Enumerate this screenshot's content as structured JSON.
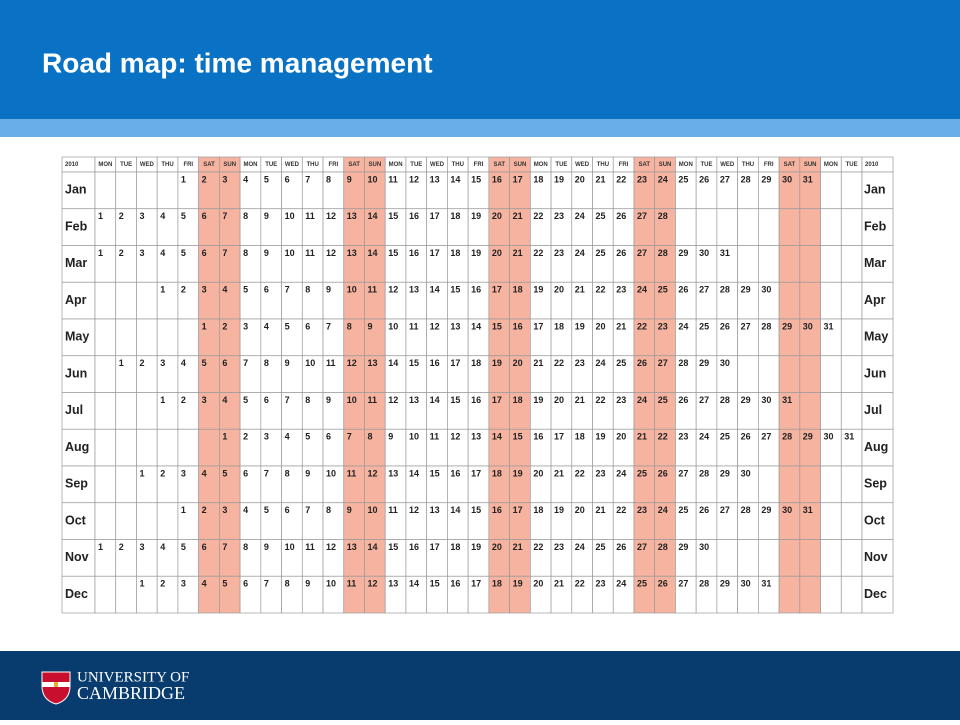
{
  "header": {
    "title": "Road map: time management"
  },
  "table": {
    "year": "2010",
    "columns": [
      "MON",
      "TUE",
      "WED",
      "THU",
      "FRI",
      "SAT",
      "SUN",
      "MON",
      "TUE",
      "WED",
      "THU",
      "FRI",
      "SAT",
      "SUN",
      "MON",
      "TUE",
      "WED",
      "THU",
      "FRI",
      "SAT",
      "SUN",
      "MON",
      "TUE",
      "WED",
      "THU",
      "FRI",
      "SAT",
      "SUN",
      "MON",
      "TUE",
      "WED",
      "THU",
      "FRI",
      "SAT",
      "SUN",
      "MON",
      "TUE"
    ],
    "rows": [
      {
        "month": "Jan",
        "cells": [
          null,
          null,
          null,
          null,
          1,
          2,
          3,
          4,
          5,
          6,
          7,
          8,
          9,
          10,
          11,
          12,
          13,
          14,
          15,
          16,
          17,
          18,
          19,
          20,
          21,
          22,
          23,
          24,
          25,
          26,
          27,
          28,
          29,
          30,
          31,
          null,
          null
        ]
      },
      {
        "month": "Feb",
        "cells": [
          1,
          2,
          3,
          4,
          5,
          6,
          7,
          8,
          9,
          10,
          11,
          12,
          13,
          14,
          15,
          16,
          17,
          18,
          19,
          20,
          21,
          22,
          23,
          24,
          25,
          26,
          27,
          28,
          null,
          null,
          null,
          null,
          null,
          null,
          null,
          null,
          null
        ]
      },
      {
        "month": "Mar",
        "cells": [
          1,
          2,
          3,
          4,
          5,
          6,
          7,
          8,
          9,
          10,
          11,
          12,
          13,
          14,
          15,
          16,
          17,
          18,
          19,
          20,
          21,
          22,
          23,
          24,
          25,
          26,
          27,
          28,
          29,
          30,
          31,
          null,
          null,
          null,
          null,
          null,
          null
        ]
      },
      {
        "month": "Apr",
        "cells": [
          null,
          null,
          null,
          1,
          2,
          3,
          4,
          5,
          6,
          7,
          8,
          9,
          10,
          11,
          12,
          13,
          14,
          15,
          16,
          17,
          18,
          19,
          20,
          21,
          22,
          23,
          24,
          25,
          26,
          27,
          28,
          29,
          30,
          null,
          null,
          null,
          null
        ]
      },
      {
        "month": "May",
        "cells": [
          null,
          null,
          null,
          null,
          null,
          1,
          2,
          3,
          4,
          5,
          6,
          7,
          8,
          9,
          10,
          11,
          12,
          13,
          14,
          15,
          16,
          17,
          18,
          19,
          20,
          21,
          22,
          23,
          24,
          25,
          26,
          27,
          28,
          29,
          30,
          31,
          null
        ]
      },
      {
        "month": "Jun",
        "cells": [
          null,
          1,
          2,
          3,
          4,
          5,
          6,
          7,
          8,
          9,
          10,
          11,
          12,
          13,
          14,
          15,
          16,
          17,
          18,
          19,
          20,
          21,
          22,
          23,
          24,
          25,
          26,
          27,
          28,
          29,
          30,
          null,
          null,
          null,
          null,
          null,
          null
        ]
      },
      {
        "month": "Jul",
        "cells": [
          null,
          null,
          null,
          1,
          2,
          3,
          4,
          5,
          6,
          7,
          8,
          9,
          10,
          11,
          12,
          13,
          14,
          15,
          16,
          17,
          18,
          19,
          20,
          21,
          22,
          23,
          24,
          25,
          26,
          27,
          28,
          29,
          30,
          31,
          null,
          null,
          null
        ]
      },
      {
        "month": "Aug",
        "cells": [
          null,
          null,
          null,
          null,
          null,
          null,
          1,
          2,
          3,
          4,
          5,
          6,
          7,
          8,
          9,
          10,
          11,
          12,
          13,
          14,
          15,
          16,
          17,
          18,
          19,
          20,
          21,
          22,
          23,
          24,
          25,
          26,
          27,
          28,
          29,
          30,
          31
        ]
      },
      {
        "month": "Sep",
        "cells": [
          null,
          null,
          1,
          2,
          3,
          4,
          5,
          6,
          7,
          8,
          9,
          10,
          11,
          12,
          13,
          14,
          15,
          16,
          17,
          18,
          19,
          20,
          21,
          22,
          23,
          24,
          25,
          26,
          27,
          28,
          29,
          30,
          null,
          null,
          null,
          null,
          null
        ]
      },
      {
        "month": "Oct",
        "cells": [
          null,
          null,
          null,
          null,
          1,
          2,
          3,
          4,
          5,
          6,
          7,
          8,
          9,
          10,
          11,
          12,
          13,
          14,
          15,
          16,
          17,
          18,
          19,
          20,
          21,
          22,
          23,
          24,
          25,
          26,
          27,
          28,
          29,
          30,
          31,
          null,
          null
        ]
      },
      {
        "month": "Nov",
        "cells": [
          1,
          2,
          3,
          4,
          5,
          6,
          7,
          8,
          9,
          10,
          11,
          12,
          13,
          14,
          15,
          16,
          17,
          18,
          19,
          20,
          21,
          22,
          23,
          24,
          25,
          26,
          27,
          28,
          29,
          30,
          null,
          null,
          null,
          null,
          null,
          null,
          null
        ]
      },
      {
        "month": "Dec",
        "cells": [
          null,
          null,
          1,
          2,
          3,
          4,
          5,
          6,
          7,
          8,
          9,
          10,
          11,
          12,
          13,
          14,
          15,
          16,
          17,
          18,
          19,
          20,
          21,
          22,
          23,
          24,
          25,
          26,
          27,
          28,
          29,
          30,
          31,
          null,
          null,
          null,
          null
        ]
      }
    ]
  },
  "footer": {
    "line1": "UNIVERSITY OF",
    "line2": "CAMBRIDGE"
  }
}
